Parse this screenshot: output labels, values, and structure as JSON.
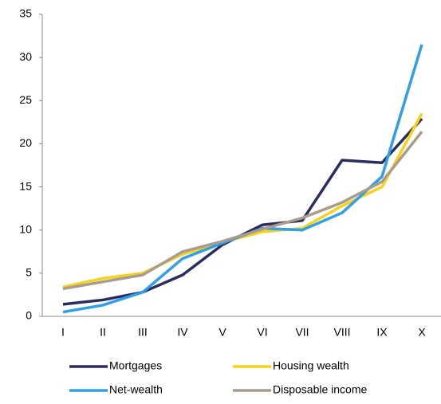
{
  "chart_data": {
    "type": "line",
    "categories": [
      "I",
      "II",
      "III",
      "IV",
      "V",
      "VI",
      "VII",
      "VIII",
      "IX",
      "X"
    ],
    "series": [
      {
        "name": "Mortgages",
        "color": "#2b2d5e",
        "values": [
          1.4,
          1.9,
          2.8,
          4.8,
          8.3,
          10.6,
          11.1,
          18.1,
          17.8,
          22.9
        ]
      },
      {
        "name": "Housing wealth",
        "color": "#f7d21a",
        "values": [
          3.4,
          4.4,
          5.0,
          7.2,
          8.6,
          9.8,
          10.2,
          12.8,
          15.0,
          23.5
        ]
      },
      {
        "name": "Net-wealth",
        "color": "#2e9fe8",
        "values": [
          0.5,
          1.3,
          2.8,
          6.7,
          8.5,
          10.2,
          10.0,
          12.0,
          16.2,
          31.5
        ]
      },
      {
        "name": "Disposable income",
        "color": "#aa9b8f",
        "values": [
          3.2,
          4.0,
          4.8,
          7.5,
          8.7,
          10.1,
          11.4,
          13.2,
          15.6,
          21.4
        ]
      }
    ],
    "ylim": [
      0,
      35
    ],
    "yticks": [
      0,
      5,
      10,
      15,
      20,
      25,
      30,
      35
    ],
    "grid": false
  }
}
